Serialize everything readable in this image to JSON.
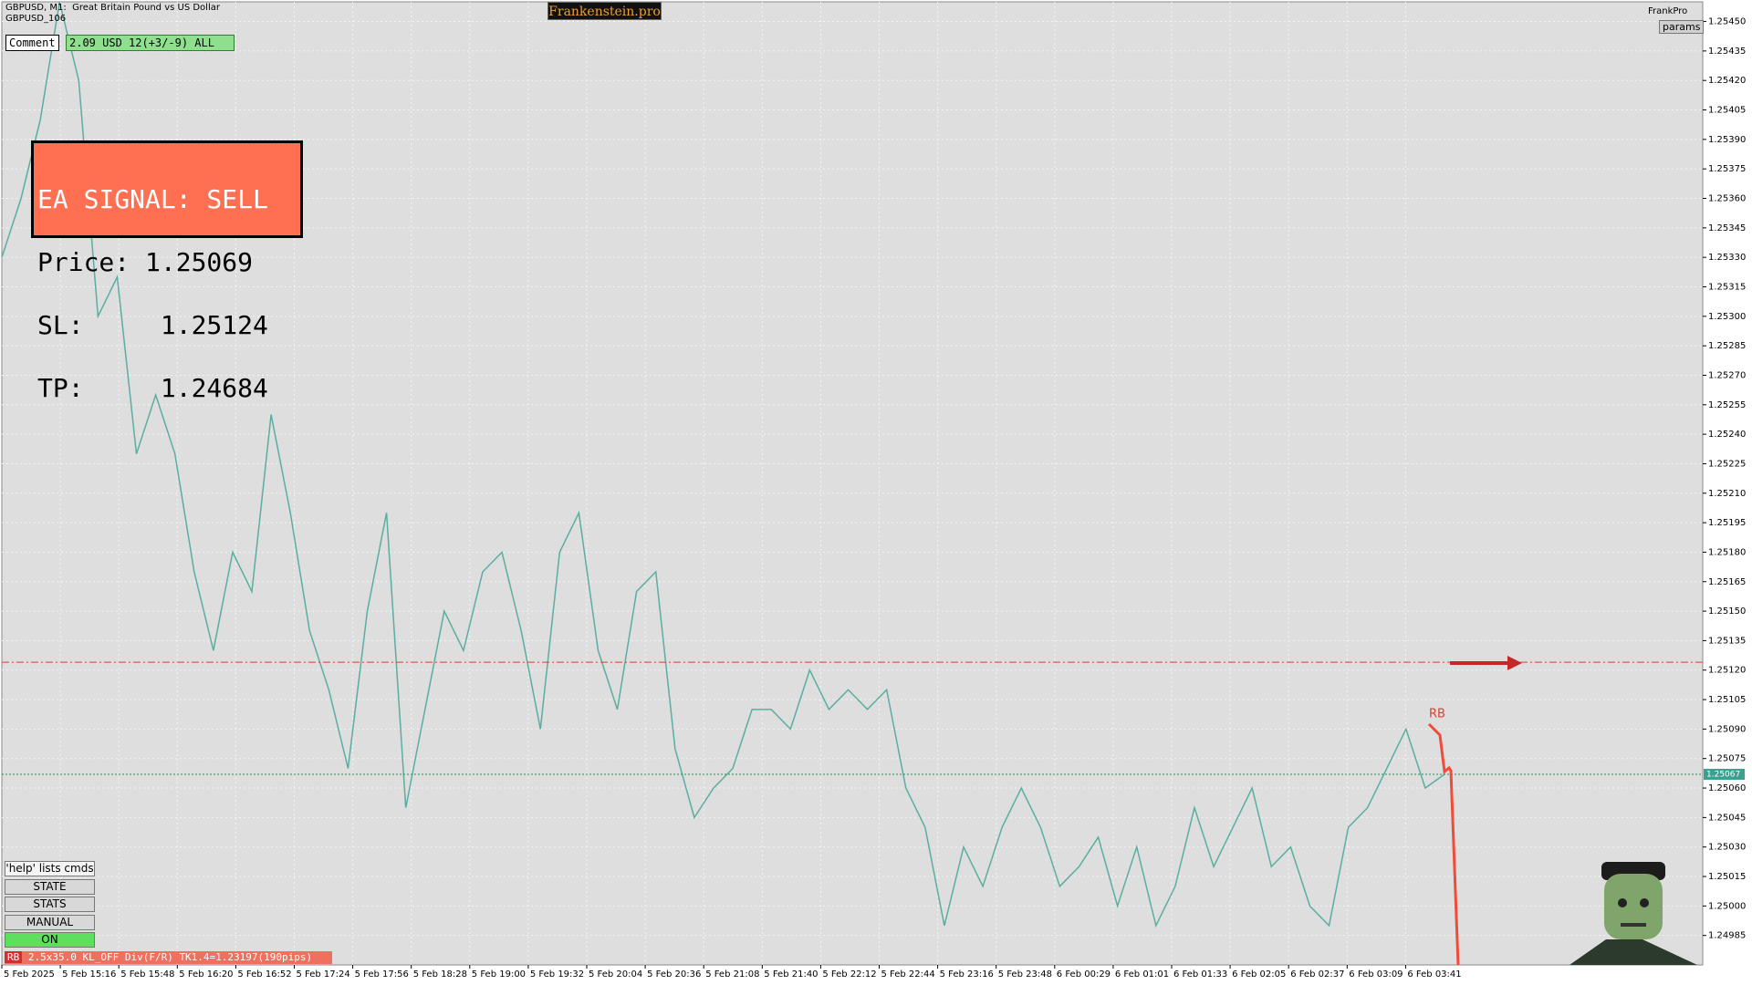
{
  "header": {
    "symbol": "GBPUSD, M1:  Great Britain Pound vs US Dollar",
    "account": "GBPUSD_106",
    "brand": "Frankenstein.pro",
    "profile": "FrankPro",
    "params": "params"
  },
  "panel": {
    "comment": "Comment",
    "result": "2.09 USD 12(+3/-9) ALL"
  },
  "signal": {
    "title": "EA SIGNAL: SELL",
    "price": "Price: 1.25069",
    "sl": "SL:     1.25124",
    "tp": "TP:     1.24684"
  },
  "buttons": {
    "help": "'help' lists cmds",
    "items": [
      "STATE",
      "STATS",
      "MANUAL",
      "ON"
    ]
  },
  "status": {
    "tag": "RB",
    "text": "2.5x35.0 KL_OFF Div(F/R) TK1.4=1.23197(190pips)"
  },
  "chart_data": {
    "type": "line",
    "marker": "RB",
    "color": "#5aaea0",
    "sl_level": 1.25124,
    "bid": 1.25067,
    "grid": true,
    "ylim": [
      1.2497,
      1.2546
    ],
    "yticks": [
      {
        "value": 1.2545,
        "label": "1.25450"
      },
      1.25435,
      {
        "value": 1.2542,
        "label": "1.25420"
      },
      1.25405,
      {
        "value": 1.2539,
        "label": "1.25390"
      },
      1.25375,
      {
        "value": 1.2536,
        "label": "1.25360"
      },
      1.25345,
      {
        "value": 1.2533,
        "label": "1.25330"
      },
      1.25315,
      {
        "value": 1.253,
        "label": "1.25300"
      },
      1.25285,
      {
        "value": 1.2527,
        "label": "1.25270"
      },
      1.25255,
      {
        "value": 1.2524,
        "label": "1.25240"
      },
      1.25225,
      {
        "value": 1.2521,
        "label": "1.25210"
      },
      1.25195,
      {
        "value": 1.2518,
        "label": "1.25180"
      },
      1.25165,
      {
        "value": 1.2515,
        "label": "1.25150"
      },
      1.25135,
      {
        "value": 1.2512,
        "label": "1.25120"
      },
      1.25105,
      {
        "value": 1.2509,
        "label": "1.25090"
      },
      1.25075,
      {
        "value": 1.2506,
        "label": "1.25060"
      },
      1.25045,
      {
        "value": 1.2503,
        "label": "1.25030"
      },
      1.25015,
      {
        "value": 1.25,
        "label": "1.25000"
      },
      1.24985
    ],
    "time_labels": [
      "5 Feb 2025",
      "5 Feb 15:16",
      "5 Feb 15:48",
      "5 Feb 16:20",
      "5 Feb 16:52",
      "5 Feb 17:24",
      "5 Feb 17:56",
      "5 Feb 18:28",
      "5 Feb 19:00",
      "5 Feb 19:32",
      "5 Feb 20:04",
      "5 Feb 20:36",
      "5 Feb 21:08",
      "5 Feb 21:40",
      "5 Feb 22:12",
      "5 Feb 22:44",
      "5 Feb 23:16",
      "5 Feb 23:48",
      "6 Feb 00:29",
      "6 Feb 01:01",
      "6 Feb 01:33",
      "6 Feb 02:05",
      "6 Feb 02:37",
      "6 Feb 03:09",
      "6 Feb 03:41"
    ],
    "values": [
      1.2533,
      1.2536,
      1.254,
      1.2546,
      1.2542,
      1.253,
      1.2532,
      1.2523,
      1.2526,
      1.2523,
      1.2517,
      1.2513,
      1.2518,
      1.2516,
      1.2525,
      1.252,
      1.2514,
      1.2511,
      1.2507,
      1.2515,
      1.252,
      1.2505,
      1.251,
      1.2515,
      1.2513,
      1.2517,
      1.2518,
      1.2514,
      1.2509,
      1.2518,
      1.252,
      1.2513,
      1.251,
      1.2516,
      1.2517,
      1.2508,
      1.25045,
      1.2506,
      1.2507,
      1.251,
      1.251,
      1.2509,
      1.2512,
      1.251,
      1.2511,
      1.251,
      1.2511,
      1.2506,
      1.2504,
      1.2499,
      1.2503,
      1.2501,
      1.2504,
      1.2506,
      1.2504,
      1.2501,
      1.2502,
      1.25035,
      1.25,
      1.2503,
      1.2499,
      1.2501,
      1.2505,
      1.2502,
      1.2504,
      1.2506,
      1.2502,
      1.2503,
      1.25,
      1.2499,
      1.2504,
      1.2505,
      1.2507,
      1.2509,
      1.2506,
      1.25067
    ]
  }
}
